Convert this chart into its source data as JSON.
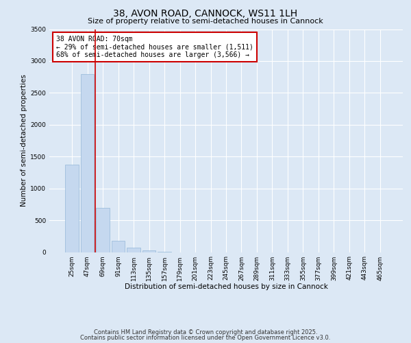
{
  "title1": "38, AVON ROAD, CANNOCK, WS11 1LH",
  "title2": "Size of property relative to semi-detached houses in Cannock",
  "xlabel": "Distribution of semi-detached houses by size in Cannock",
  "ylabel": "Number of semi-detached properties",
  "categories": [
    "25sqm",
    "47sqm",
    "69sqm",
    "91sqm",
    "113sqm",
    "135sqm",
    "157sqm",
    "179sqm",
    "201sqm",
    "223sqm",
    "245sqm",
    "267sqm",
    "289sqm",
    "311sqm",
    "333sqm",
    "355sqm",
    "377sqm",
    "399sqm",
    "421sqm",
    "443sqm",
    "465sqm"
  ],
  "values": [
    1375,
    2800,
    700,
    175,
    75,
    25,
    8,
    0,
    0,
    0,
    0,
    0,
    0,
    0,
    0,
    0,
    0,
    0,
    0,
    0,
    0
  ],
  "bar_color": "#c5d8ef",
  "bar_edge_color": "#95b8d8",
  "vline_x": 1.5,
  "vline_color": "#cc0000",
  "annotation_text": "38 AVON ROAD: 70sqm\n← 29% of semi-detached houses are smaller (1,511)\n68% of semi-detached houses are larger (3,566) →",
  "annotation_box_color": "#ffffff",
  "annotation_border_color": "#cc0000",
  "ylim": [
    0,
    3500
  ],
  "yticks": [
    0,
    500,
    1000,
    1500,
    2000,
    2500,
    3000,
    3500
  ],
  "background_color": "#dce8f5",
  "plot_bg_color": "#dce8f5",
  "grid_color": "#ffffff",
  "footer1": "Contains HM Land Registry data © Crown copyright and database right 2025.",
  "footer2": "Contains public sector information licensed under the Open Government Licence v3.0.",
  "title1_fontsize": 10,
  "title2_fontsize": 8,
  "annotation_fontsize": 7,
  "axis_label_fontsize": 7.5,
  "tick_fontsize": 6.5,
  "footer_fontsize": 6
}
